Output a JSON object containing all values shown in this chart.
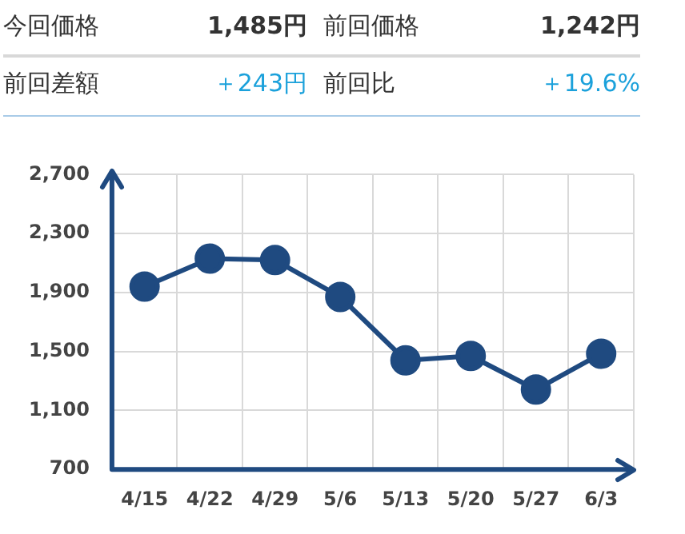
{
  "chart_data": [
    {
      "type": "other",
      "annotations": [
        "今回価格",
        "1,485円",
        "前回価格",
        "1,242円",
        "前回差額",
        "＋243円",
        "前回比",
        "＋19.6%"
      ]
    },
    {
      "type": "line",
      "categories": [
        "4/15",
        "4/22",
        "4/29",
        "5/6",
        "5/13",
        "5/20",
        "5/27",
        "6/3"
      ],
      "series": [
        {
          "color": "#1f4a80",
          "values": [
            1940,
            2130,
            2120,
            1870,
            1440,
            1470,
            1242,
            1485
          ]
        }
      ],
      "ylim": [
        700,
        2700
      ],
      "yticks": [
        700,
        {
          "value": 1100,
          "label": "1,100"
        },
        {
          "value": 1500,
          "label": "1,500"
        },
        {
          "value": 1900,
          "label": "1,900"
        },
        {
          "value": 2300,
          "label": "2,300"
        },
        {
          "value": 2700,
          "label": "2,700"
        }
      ],
      "grid": true,
      "legend": false,
      "marker": "circle",
      "line_style": "solid"
    }
  ]
}
